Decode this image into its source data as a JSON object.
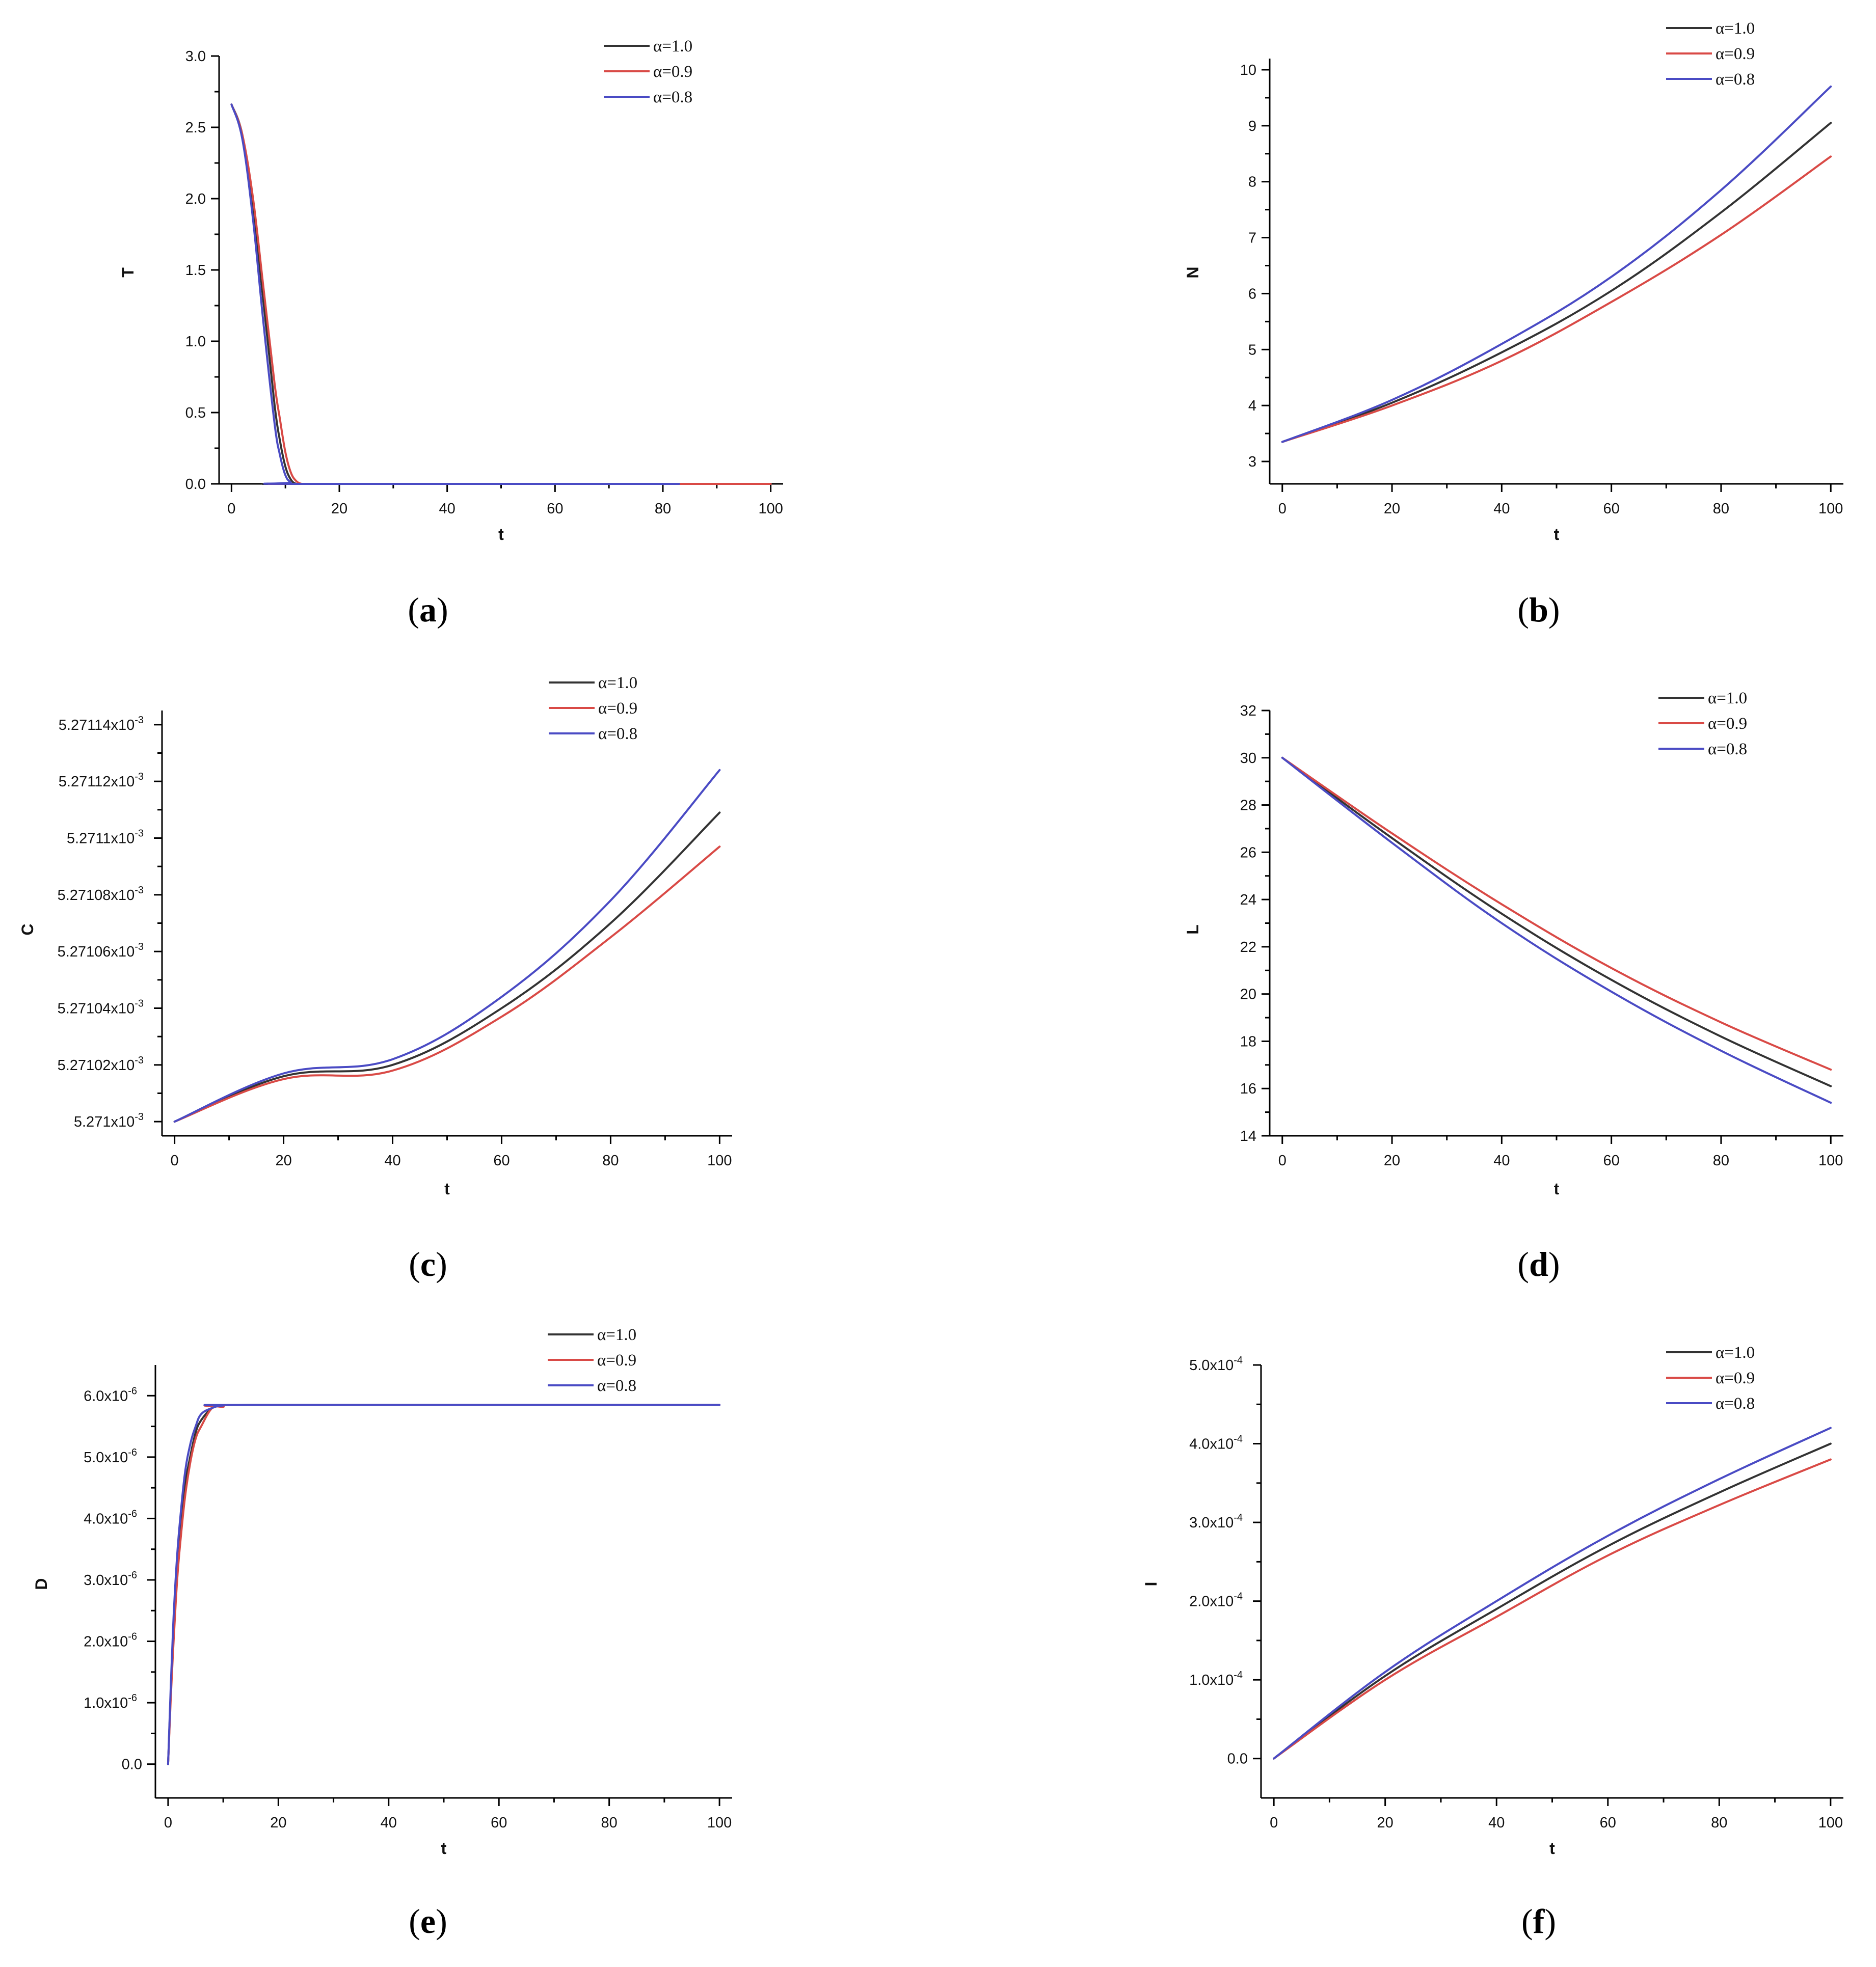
{
  "colors": {
    "alpha_1_0": "#333333",
    "alpha_0_9": "#d94a46",
    "alpha_0_8": "#4a4bc4"
  },
  "chart_data": [
    {
      "id": "a",
      "type": "line",
      "caption_letter": "a",
      "xlabel": "t",
      "ylabel": "T",
      "xlim": [
        0,
        100
      ],
      "ylim": [
        0,
        3.0
      ],
      "xticks": [
        "0",
        "20",
        "40",
        "60",
        "80",
        "100"
      ],
      "yticks": [
        "0.0",
        "0.5",
        "1.0",
        "1.5",
        "2.0",
        "2.5",
        "3.0"
      ],
      "legend": "top-right",
      "series": [
        {
          "name": "α=1.0",
          "color": "#333333",
          "x": [
            0,
            2,
            4,
            6,
            8,
            9,
            10,
            11,
            12,
            13,
            100
          ],
          "y": [
            2.66,
            2.45,
            1.95,
            1.25,
            0.55,
            0.3,
            0.12,
            0.03,
            0.0,
            0.0,
            0.0
          ]
        },
        {
          "name": "α=0.9",
          "color": "#d94a46",
          "x": [
            0,
            2,
            4,
            6,
            8,
            9,
            10,
            11,
            12,
            13,
            14,
            100
          ],
          "y": [
            2.66,
            2.45,
            2.0,
            1.35,
            0.7,
            0.45,
            0.22,
            0.08,
            0.02,
            0.0,
            0.0,
            0.0
          ]
        },
        {
          "name": "α=0.8",
          "color": "#4a4bc4",
          "x": [
            0,
            2,
            4,
            6,
            8,
            9,
            10,
            11,
            12,
            83
          ],
          "y": [
            2.66,
            2.42,
            1.85,
            1.1,
            0.42,
            0.2,
            0.06,
            0.01,
            0.0,
            0.0
          ]
        }
      ]
    },
    {
      "id": "b",
      "type": "line",
      "caption_letter": "b",
      "xlabel": "t",
      "ylabel": "N",
      "xlim": [
        0,
        100
      ],
      "ylim": [
        2.6,
        10.2
      ],
      "xticks": [
        "0",
        "20",
        "40",
        "60",
        "80",
        "100"
      ],
      "yticks": [
        "3",
        "4",
        "5",
        "6",
        "7",
        "8",
        "9",
        "10"
      ],
      "legend": "top-right",
      "series": [
        {
          "name": "α=1.0",
          "color": "#333333",
          "x": [
            0,
            20,
            40,
            60,
            80,
            100
          ],
          "y": [
            3.35,
            4.05,
            4.95,
            6.05,
            7.45,
            9.05
          ]
        },
        {
          "name": "α=0.9",
          "color": "#d94a46",
          "x": [
            0,
            20,
            40,
            60,
            80,
            100
          ],
          "y": [
            3.35,
            4.0,
            4.8,
            5.85,
            7.05,
            8.45
          ]
        },
        {
          "name": "α=0.8",
          "color": "#4a4bc4",
          "x": [
            0,
            20,
            40,
            60,
            80,
            100
          ],
          "y": [
            3.35,
            4.1,
            5.1,
            6.3,
            7.85,
            9.7
          ]
        }
      ]
    },
    {
      "id": "c",
      "type": "line",
      "caption_letter": "c",
      "xlabel": "t",
      "ylabel": "C",
      "xlim": [
        0,
        100
      ],
      "ylim": [
        5.270995,
        5.271145
      ],
      "xticks": [
        "0",
        "20",
        "40",
        "60",
        "80",
        "100"
      ],
      "ytick_values": [
        5.271,
        5.27102,
        5.27104,
        5.27106,
        5.27108,
        5.2711,
        5.27112,
        5.27114
      ],
      "yticks": [
        "5.271x10",
        "5.27102x10",
        "5.27104x10",
        "5.27106x10",
        "5.27108x10",
        "5.2711x10",
        "5.27112x10",
        "5.27114x10"
      ],
      "ytick_exponent": "-3",
      "legend": "top-right",
      "series": [
        {
          "name": "α=1.0",
          "color": "#333333",
          "x": [
            0,
            20,
            40,
            60,
            80,
            100
          ],
          "y": [
            5.271,
            5.271016,
            5.27102,
            5.27104,
            5.27107,
            5.271109
          ]
        },
        {
          "name": "α=0.9",
          "color": "#d94a46",
          "x": [
            0,
            20,
            40,
            60,
            80,
            100
          ],
          "y": [
            5.271,
            5.271015,
            5.271018,
            5.271037,
            5.271065,
            5.271097
          ]
        },
        {
          "name": "α=0.8",
          "color": "#4a4bc4",
          "x": [
            0,
            20,
            40,
            60,
            80,
            100
          ],
          "y": [
            5.271,
            5.271017,
            5.271022,
            5.271044,
            5.271078,
            5.271124
          ]
        }
      ]
    },
    {
      "id": "d",
      "type": "line",
      "caption_letter": "d",
      "xlabel": "t",
      "ylabel": "L",
      "xlim": [
        0,
        100
      ],
      "ylim": [
        14,
        32
      ],
      "xticks": [
        "0",
        "20",
        "40",
        "60",
        "80",
        "100"
      ],
      "yticks": [
        "14",
        "16",
        "18",
        "20",
        "22",
        "24",
        "26",
        "28",
        "30",
        "32"
      ],
      "legend": "top-right",
      "series": [
        {
          "name": "α=1.0",
          "color": "#333333",
          "x": [
            0,
            20,
            40,
            60,
            80,
            100
          ],
          "y": [
            30,
            26.6,
            23.4,
            20.6,
            18.2,
            16.1
          ]
        },
        {
          "name": "α=0.9",
          "color": "#d94a46",
          "x": [
            0,
            20,
            40,
            60,
            80,
            100
          ],
          "y": [
            30,
            26.8,
            23.8,
            21.1,
            18.8,
            16.8
          ]
        },
        {
          "name": "α=0.8",
          "color": "#4a4bc4",
          "x": [
            0,
            20,
            40,
            60,
            80,
            100
          ],
          "y": [
            30,
            26.4,
            23.0,
            20.1,
            17.6,
            15.4
          ]
        }
      ]
    },
    {
      "id": "e",
      "type": "line",
      "caption_letter": "e",
      "xlabel": "t",
      "ylabel": "D",
      "xlim": [
        0,
        100
      ],
      "ylim": [
        -5.5e-07,
        6.5e-06
      ],
      "xticks": [
        "0",
        "20",
        "40",
        "60",
        "80",
        "100"
      ],
      "ytick_values": [
        0,
        1e-06,
        2e-06,
        3e-06,
        4e-06,
        5e-06,
        6e-06
      ],
      "yticks": [
        "0.0",
        "1.0x10",
        "2.0x10",
        "3.0x10",
        "4.0x10",
        "5.0x10",
        "6.0x10"
      ],
      "ytick_exponent": "-6",
      "legend": "top-right",
      "series": [
        {
          "name": "α=1.0",
          "color": "#333333",
          "x": [
            0,
            0.5,
            1,
            1.5,
            2,
            3,
            4,
            5,
            6,
            8,
            10,
            15,
            100
          ],
          "y": [
            0.0,
            1.2e-06,
            2.2e-06,
            3e-06,
            3.6e-06,
            4.5e-06,
            5e-06,
            5.4e-06,
            5.6e-06,
            5.8e-06,
            5.83e-06,
            5.85e-06,
            5.85e-06
          ]
        },
        {
          "name": "α=0.9",
          "color": "#d94a46",
          "x": [
            0,
            0.5,
            1,
            1.5,
            2,
            3,
            4,
            5,
            6,
            8,
            10,
            15,
            100
          ],
          "y": [
            0.0,
            1.1e-06,
            2e-06,
            2.8e-06,
            3.4e-06,
            4.3e-06,
            4.9e-06,
            5.3e-06,
            5.5e-06,
            5.8e-06,
            5.82e-06,
            5.85e-06,
            5.85e-06
          ]
        },
        {
          "name": "α=0.8",
          "color": "#4a4bc4",
          "x": [
            0,
            0.5,
            1,
            1.5,
            2,
            3,
            4,
            5,
            6,
            8,
            10,
            15,
            100
          ],
          "y": [
            0.0,
            1.3e-06,
            2.4e-06,
            3.2e-06,
            3.8e-06,
            4.7e-06,
            5.2e-06,
            5.5e-06,
            5.7e-06,
            5.8e-06,
            5.84e-06,
            5.85e-06,
            5.85e-06
          ]
        }
      ]
    },
    {
      "id": "f",
      "type": "line",
      "caption_letter": "f",
      "xlabel": "t",
      "ylabel": "I",
      "xlim": [
        0,
        100
      ],
      "ylim": [
        -5e-05,
        0.0005
      ],
      "xticks": [
        "0",
        "20",
        "40",
        "60",
        "80",
        "100"
      ],
      "ytick_values": [
        0,
        0.0001,
        0.0002,
        0.0003,
        0.0004,
        0.0005
      ],
      "yticks": [
        "0.0",
        "1.0x10",
        "2.0x10",
        "3.0x10",
        "4.0x10",
        "5.0x10"
      ],
      "ytick_exponent": "-4",
      "legend": "top-right",
      "series": [
        {
          "name": "α=1.0",
          "color": "#333333",
          "x": [
            0,
            20,
            40,
            60,
            80,
            100
          ],
          "y": [
            0.0,
            0.000105,
            0.00019,
            0.00027,
            0.000338,
            0.0004
          ]
        },
        {
          "name": "α=0.9",
          "color": "#d94a46",
          "x": [
            0,
            20,
            40,
            60,
            80,
            100
          ],
          "y": [
            0.0,
            0.0001,
            0.00018,
            0.000258,
            0.000322,
            0.00038
          ]
        },
        {
          "name": "α=0.8",
          "color": "#4a4bc4",
          "x": [
            0,
            20,
            40,
            60,
            80,
            100
          ],
          "y": [
            0.0,
            0.00011,
            0.0002,
            0.000283,
            0.000355,
            0.00042
          ]
        }
      ]
    }
  ]
}
